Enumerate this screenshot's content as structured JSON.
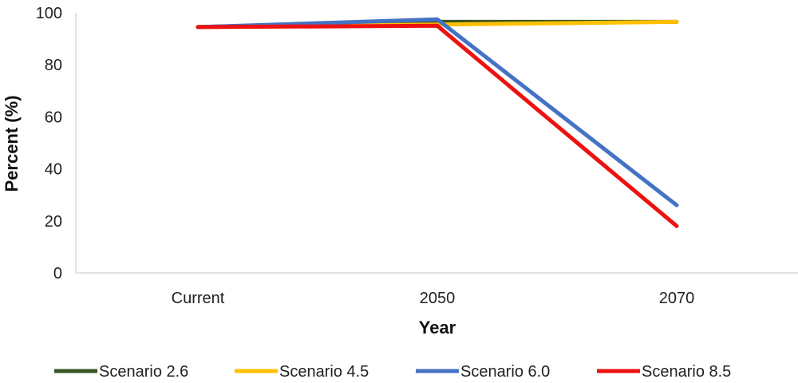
{
  "chart_data": {
    "type": "line",
    "title": "",
    "xlabel": "Year",
    "ylabel": "Percent (%)",
    "categories": [
      "Current",
      "2050",
      "2070"
    ],
    "ylim": [
      0,
      100
    ],
    "yticks": [
      0,
      20,
      40,
      60,
      80,
      100
    ],
    "grid": false,
    "legend_position": "bottom",
    "series": [
      {
        "name": "Scenario 2.6",
        "color": "#375623",
        "values": [
          94.5,
          96.5,
          96.5
        ]
      },
      {
        "name": "Scenario 4.5",
        "color": "#FFC000",
        "values": [
          94.5,
          95.5,
          96.5
        ]
      },
      {
        "name": "Scenario 6.0",
        "color": "#4472C4",
        "values": [
          94.5,
          97.5,
          26
        ]
      },
      {
        "name": "Scenario 8.5",
        "color": "#EE1111",
        "values": [
          94.5,
          95,
          18
        ]
      }
    ]
  }
}
